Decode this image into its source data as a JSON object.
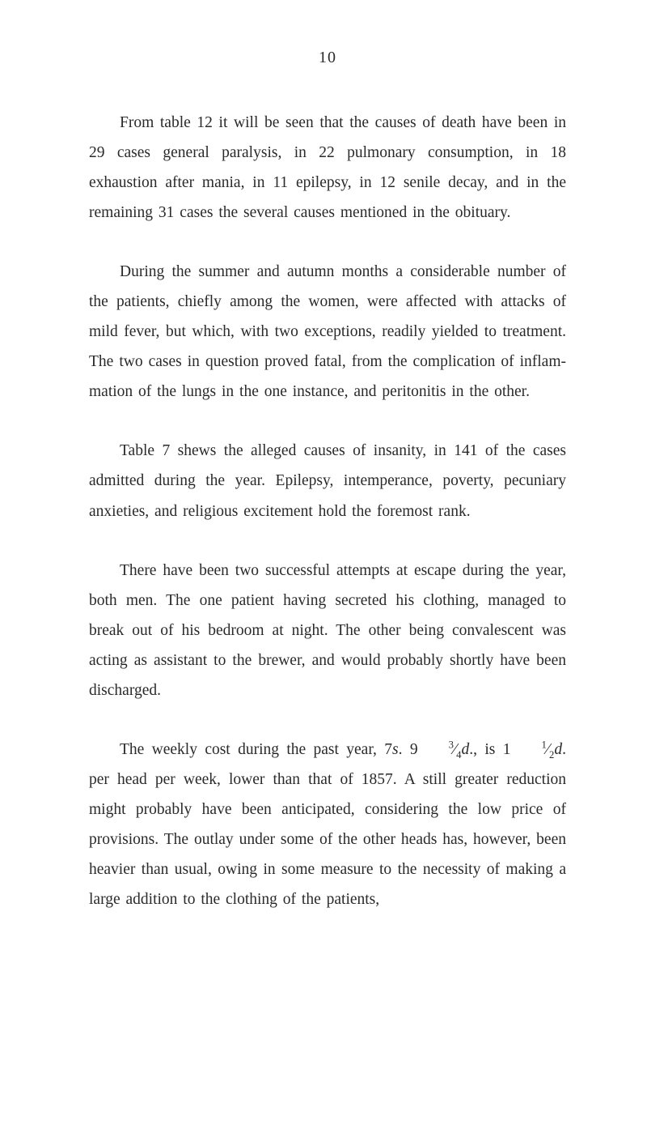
{
  "page": {
    "number": "10"
  },
  "paragraphs": {
    "p1": "From table 12 it will be seen that the causes of death have been in 29 cases general paralysis, in 22 pulmonary consumption, in 18 exhaustion after mania, in 11 epi­lepsy, in 12 senile decay, and in the remaining 31 cases the several causes mentioned in the obituary.",
    "p2": "During the summer and autumn months a considerable number of the patients, chiefly among the women, were affected with attacks of mild fever, but which, with two exceptions, readily yielded to treatment. The two cases in question proved fatal, from the complication of inflam­mation of the lungs in the one instance, and peritonitis in the other.",
    "p3": "Table 7 shews the alleged causes of insanity, in 141 of the cases admitted during the year. Epilepsy, intemperance, poverty, pecuniary anxieties, and religious excitement hold the foremost rank.",
    "p4": "There have been two successful attempts at escape during the year, both men. The one patient having secreted his clothing, managed to break out of his bed­room at night. The other being convalescent was acting as assistant to the brewer, and would probably shortly have been discharged.",
    "p5_part1": "The weekly cost during the past year, 7",
    "p5_s": "s",
    "p5_part2": ". 9",
    "p5_frac1_num": "3",
    "p5_frac1_den": "4",
    "p5_d1": "d",
    "p5_part3": "., is 1",
    "p5_frac2_num": "1",
    "p5_frac2_den": "2",
    "p5_d2": "d",
    "p5_part4": ". per head per week, lower than that of 1857. A still greater reduction might probably have been anticipated, considering the low price of provisions. The outlay under some of the other heads has, however, been heavier than usual, owing in some measure to the necessity of making a large addition to the clothing of the patients,"
  },
  "style": {
    "background_color": "#ffffff",
    "text_color": "#2a2a2a",
    "font_family": "Georgia, Times New Roman, serif",
    "font_size_body": 19.5,
    "font_size_pagenum": 20,
    "line_height": 1.9,
    "text_indent": 38,
    "paragraph_spacing": 36
  }
}
